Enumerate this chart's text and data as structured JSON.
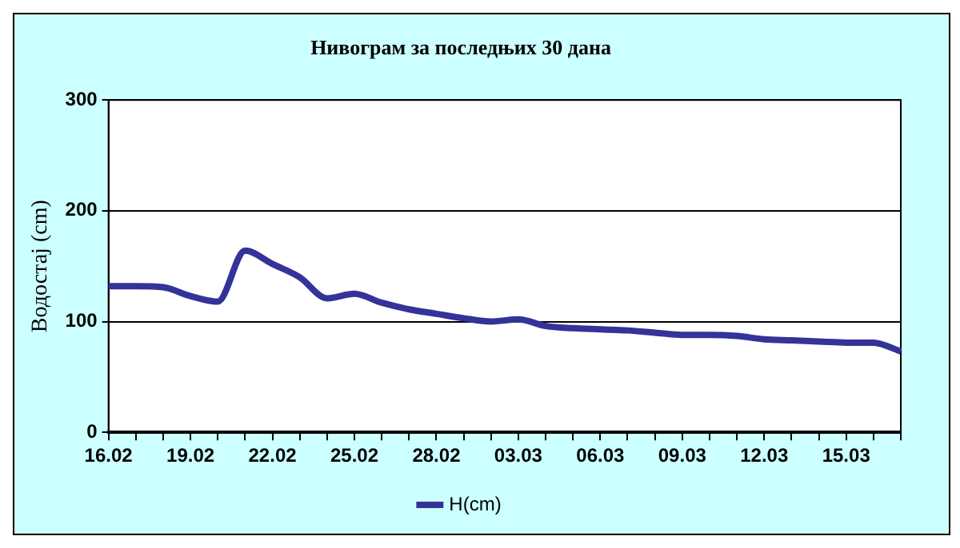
{
  "chart_data": {
    "type": "line",
    "title": "Нивограм за последњих 30 дана",
    "ylabel": "Водостај (cm)",
    "categories": [
      "16.02",
      null,
      null,
      "19.02",
      null,
      null,
      "22.02",
      null,
      null,
      "25.02",
      null,
      null,
      "28.02",
      null,
      null,
      "03.03",
      null,
      null,
      "06.03",
      null,
      null,
      "09.03",
      null,
      null,
      "12.03",
      null,
      null,
      "15.03",
      null,
      null
    ],
    "series": [
      {
        "name": "H(cm)",
        "color": "#333399",
        "values": [
          132,
          132,
          131,
          123,
          118,
          164,
          152,
          140,
          121,
          125,
          117,
          111,
          107,
          103,
          100,
          102,
          96,
          94,
          93,
          92,
          90,
          88,
          88,
          87,
          84,
          83,
          82,
          81,
          81,
          73
        ]
      }
    ],
    "ylim": [
      0,
      300
    ],
    "yticks": [
      0,
      100,
      200,
      300
    ],
    "grid": "y",
    "legend": "bottom",
    "marker": "none",
    "line_style": "solid"
  }
}
